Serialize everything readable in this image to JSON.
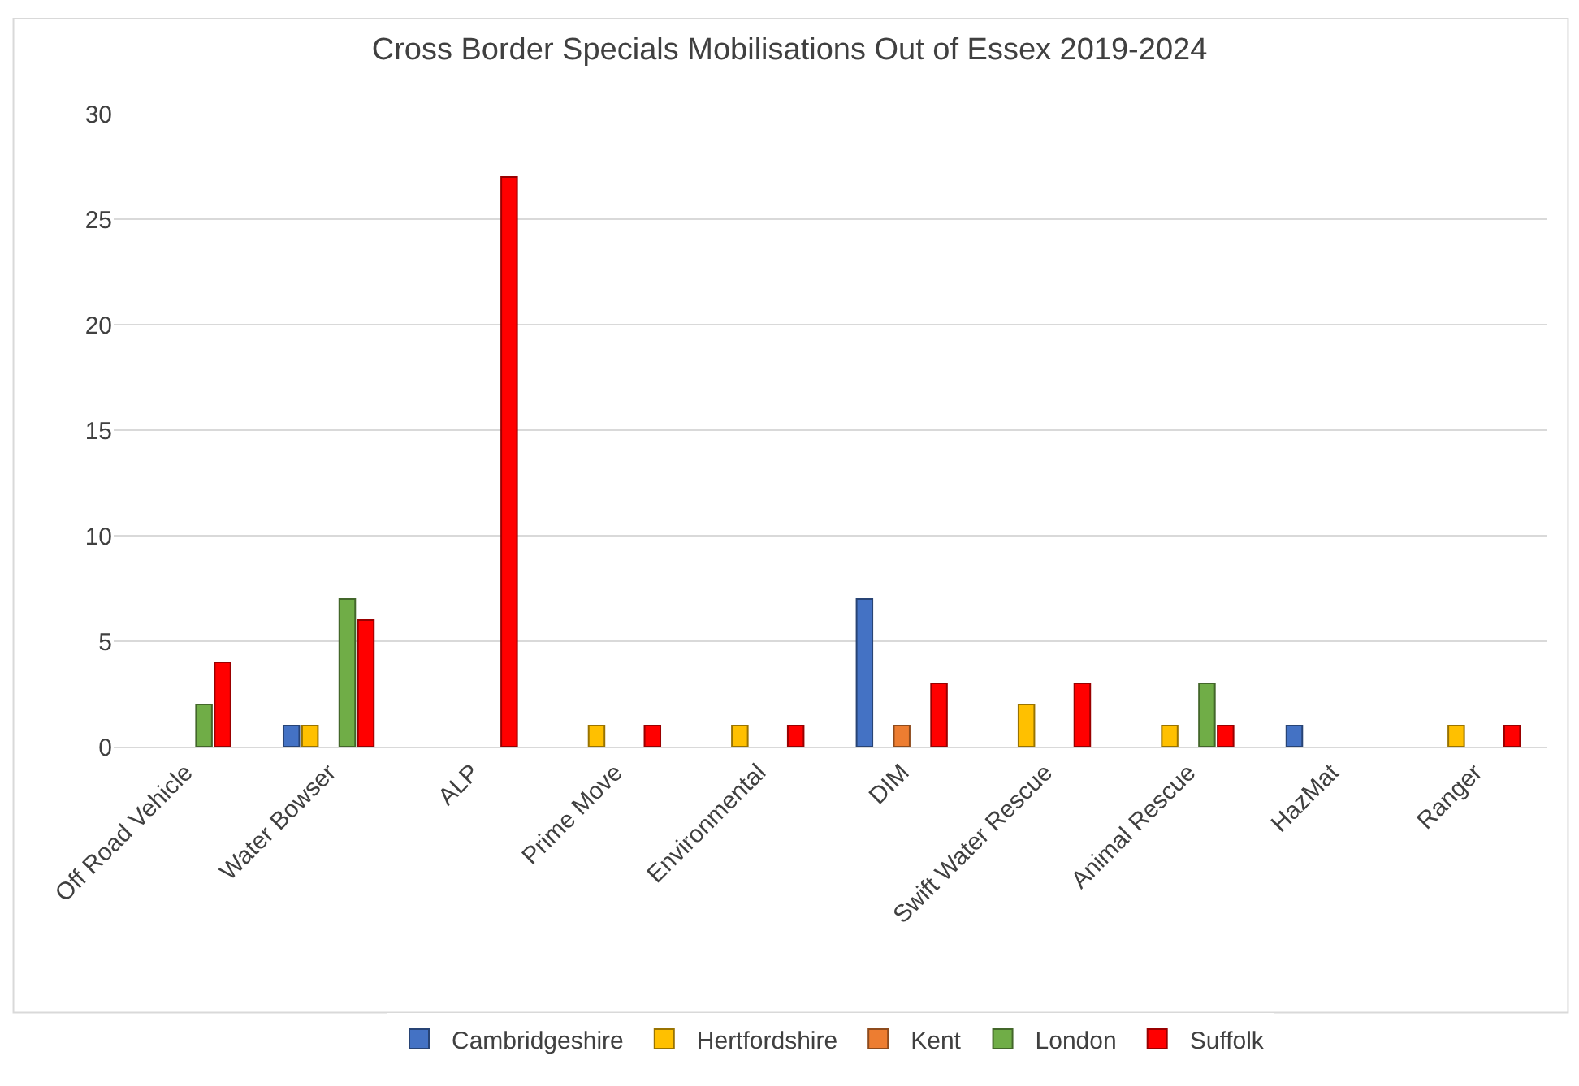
{
  "chart_data": {
    "type": "bar",
    "title": "Cross Border Specials Mobilisations Out of Essex 2019-2024",
    "categories": [
      "Off Road Vehicle",
      "Water Bowser",
      "ALP",
      "Prime Move",
      "Environmental",
      "DIM",
      "Swift Water Rescue",
      "Animal Rescue",
      "HazMat",
      "Ranger"
    ],
    "series": [
      {
        "name": "Cambridgeshire",
        "color": "#4472c4",
        "values": [
          null,
          1,
          null,
          null,
          null,
          7,
          null,
          null,
          1,
          null
        ]
      },
      {
        "name": "Hertfordshire",
        "color": "#ffc000",
        "values": [
          null,
          1,
          null,
          1,
          1,
          null,
          2,
          1,
          null,
          1
        ]
      },
      {
        "name": "Kent",
        "color": "#ed7d31",
        "values": [
          null,
          null,
          null,
          null,
          null,
          1,
          null,
          null,
          null,
          null
        ]
      },
      {
        "name": "London",
        "color": "#70ad47",
        "values": [
          2,
          7,
          null,
          null,
          null,
          null,
          null,
          3,
          null,
          null
        ]
      },
      {
        "name": "Suffolk",
        "color": "#ff0000",
        "values": [
          4,
          6,
          27,
          1,
          1,
          3,
          3,
          1,
          null,
          1
        ]
      }
    ],
    "ylim": [
      0,
      30
    ],
    "yticks": [
      0,
      5,
      10,
      15,
      20,
      25,
      30
    ],
    "grid": "y",
    "legend": "bottom"
  }
}
